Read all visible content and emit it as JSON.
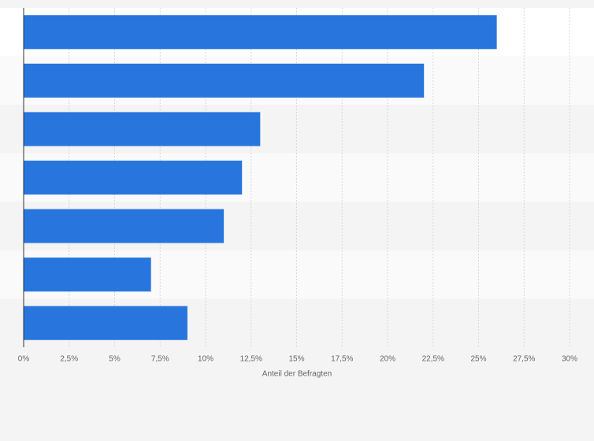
{
  "chart_data": {
    "type": "bar",
    "orientation": "horizontal",
    "categories": [
      null,
      null,
      null,
      null,
      null,
      null,
      null
    ],
    "values": [
      26,
      22,
      13,
      12,
      11,
      7,
      9
    ],
    "color": "#2876dd",
    "xlabel": "Anteil der Befragten",
    "xlim": [
      0,
      30
    ],
    "xticks": [
      {
        "value": 0,
        "label": "0%"
      },
      {
        "value": 2.5,
        "label": "2,5%"
      },
      {
        "value": 5,
        "label": "5%"
      },
      {
        "value": 7.5,
        "label": "7,5%"
      },
      {
        "value": 10,
        "label": "10%"
      },
      {
        "value": 12.5,
        "label": "12,5%"
      },
      {
        "value": 15,
        "label": "15%"
      },
      {
        "value": 17.5,
        "label": "17,5%"
      },
      {
        "value": 20,
        "label": "20%"
      },
      {
        "value": 22.5,
        "label": "22,5%"
      },
      {
        "value": 25,
        "label": "25%"
      },
      {
        "value": 27.5,
        "label": "27,5%"
      },
      {
        "value": 30,
        "label": "30%"
      }
    ],
    "grid": true
  }
}
